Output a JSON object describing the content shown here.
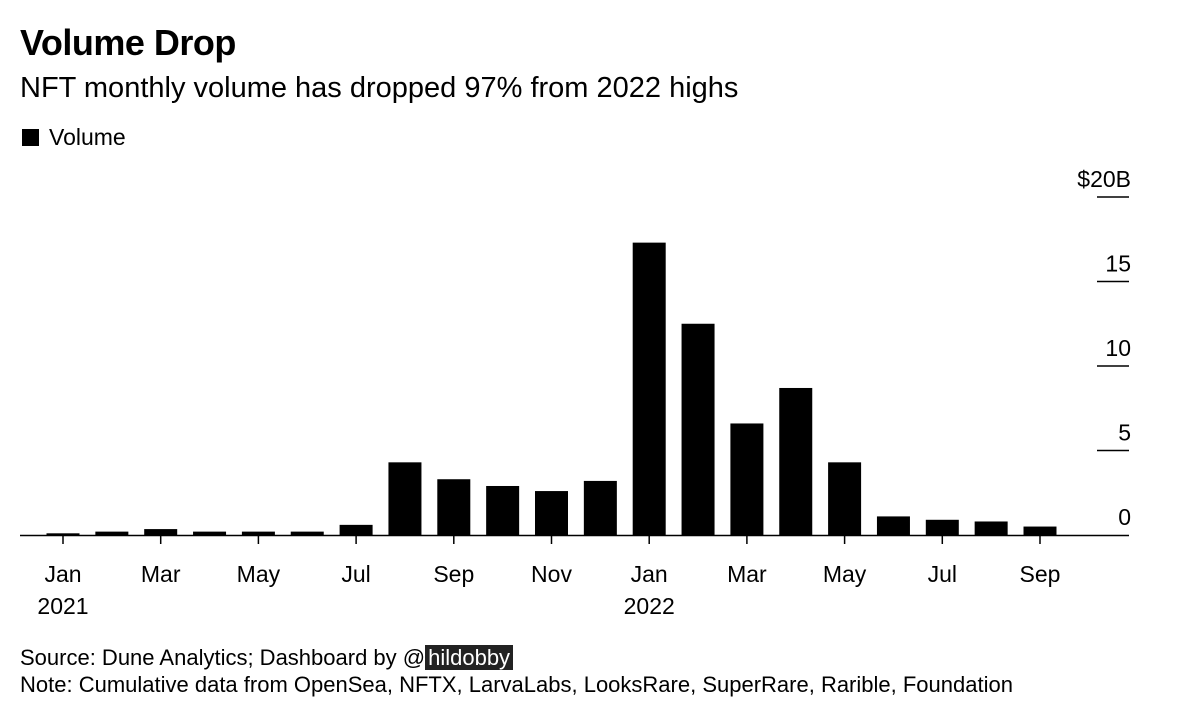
{
  "header": {
    "title": "Volume Drop",
    "subtitle": "NFT monthly volume has dropped 97% from 2022 highs"
  },
  "legend": {
    "label": "Volume"
  },
  "footer": {
    "source_prefix": "Source: Dune Analytics; Dashboard by @",
    "source_handle": "hildobby",
    "note": "Note: Cumulative data from OpenSea, NFTX, LarvaLabs, LooksRare, SuperRare, Rarible, Foundation"
  },
  "chart_data": {
    "type": "bar",
    "title": "Volume Drop",
    "subtitle": "NFT monthly volume has dropped 97% from 2022 highs",
    "categories": [
      "2021-01",
      "2021-02",
      "2021-03",
      "2021-04",
      "2021-05",
      "2021-06",
      "2021-07",
      "2021-08",
      "2021-09",
      "2021-10",
      "2021-11",
      "2021-12",
      "2022-01",
      "2022-02",
      "2022-03",
      "2022-04",
      "2022-05",
      "2022-06",
      "2022-07",
      "2022-08",
      "2022-09"
    ],
    "series": [
      {
        "name": "Volume",
        "values": [
          0.1,
          0.2,
          0.35,
          0.2,
          0.2,
          0.2,
          0.6,
          4.3,
          3.3,
          2.9,
          2.6,
          3.2,
          17.3,
          12.5,
          6.6,
          8.7,
          4.3,
          1.1,
          0.9,
          0.8,
          0.5
        ]
      }
    ],
    "ylim": [
      0,
      20
    ],
    "yticks": [
      0,
      5,
      10,
      15,
      20
    ],
    "ytick_labels": [
      "0",
      "5",
      "10",
      "15",
      "$20B"
    ],
    "xtick_labels": [
      {
        "month": "Jan",
        "year": "2021",
        "index": 0
      },
      {
        "month": "Mar",
        "year": "",
        "index": 2
      },
      {
        "month": "May",
        "year": "",
        "index": 4
      },
      {
        "month": "Jul",
        "year": "",
        "index": 6
      },
      {
        "month": "Sep",
        "year": "",
        "index": 8
      },
      {
        "month": "Nov",
        "year": "",
        "index": 10
      },
      {
        "month": "Jan",
        "year": "2022",
        "index": 12
      },
      {
        "month": "Mar",
        "year": "",
        "index": 14
      },
      {
        "month": "May",
        "year": "",
        "index": 16
      },
      {
        "month": "Jul",
        "year": "",
        "index": 18
      },
      {
        "month": "Sep",
        "year": "",
        "index": 20
      }
    ],
    "bar_color": "#000000",
    "axis_position": "right",
    "grid": false
  }
}
